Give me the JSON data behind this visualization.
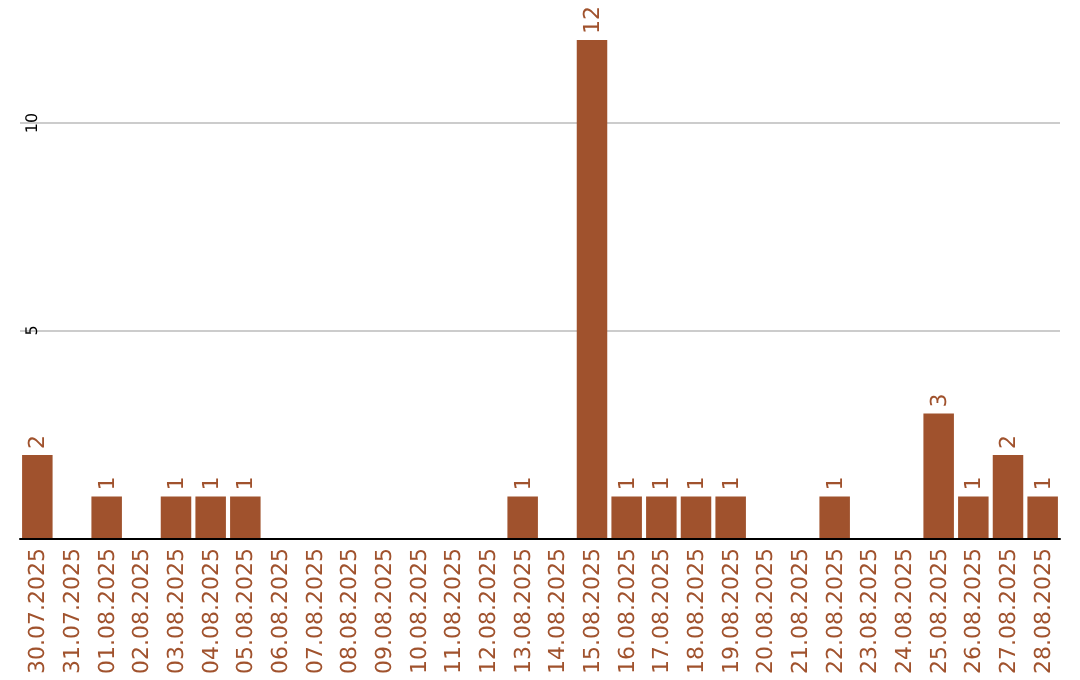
{
  "chart_data": {
    "type": "bar",
    "categories": [
      "30.07.2025",
      "31.07.2025",
      "01.08.2025",
      "02.08.2025",
      "03.08.2025",
      "04.08.2025",
      "05.08.2025",
      "06.08.2025",
      "07.08.2025",
      "08.08.2025",
      "09.08.2025",
      "10.08.2025",
      "11.08.2025",
      "12.08.2025",
      "13.08.2025",
      "14.08.2025",
      "15.08.2025",
      "16.08.2025",
      "17.08.2025",
      "18.08.2025",
      "19.08.2025",
      "20.08.2025",
      "21.08.2025",
      "22.08.2025",
      "23.08.2025",
      "24.08.2025",
      "25.08.2025",
      "26.08.2025",
      "27.08.2025",
      "28.08.2025"
    ],
    "values": [
      2,
      0,
      1,
      0,
      1,
      1,
      1,
      0,
      0,
      0,
      0,
      0,
      0,
      0,
      1,
      0,
      12,
      1,
      1,
      1,
      1,
      0,
      0,
      1,
      0,
      0,
      3,
      1,
      2,
      1
    ],
    "value_labels": [
      "2",
      null,
      "1",
      null,
      "1",
      "1",
      "1",
      null,
      null,
      null,
      null,
      null,
      null,
      null,
      "1",
      null,
      "12",
      "1",
      "1",
      "1",
      "1",
      null,
      null,
      "1",
      null,
      null,
      "3",
      "1",
      "2",
      "1"
    ],
    "color": "#a0522d",
    "ylim": [
      0,
      12
    ],
    "yticks": [
      5,
      10
    ],
    "grid": "y"
  }
}
